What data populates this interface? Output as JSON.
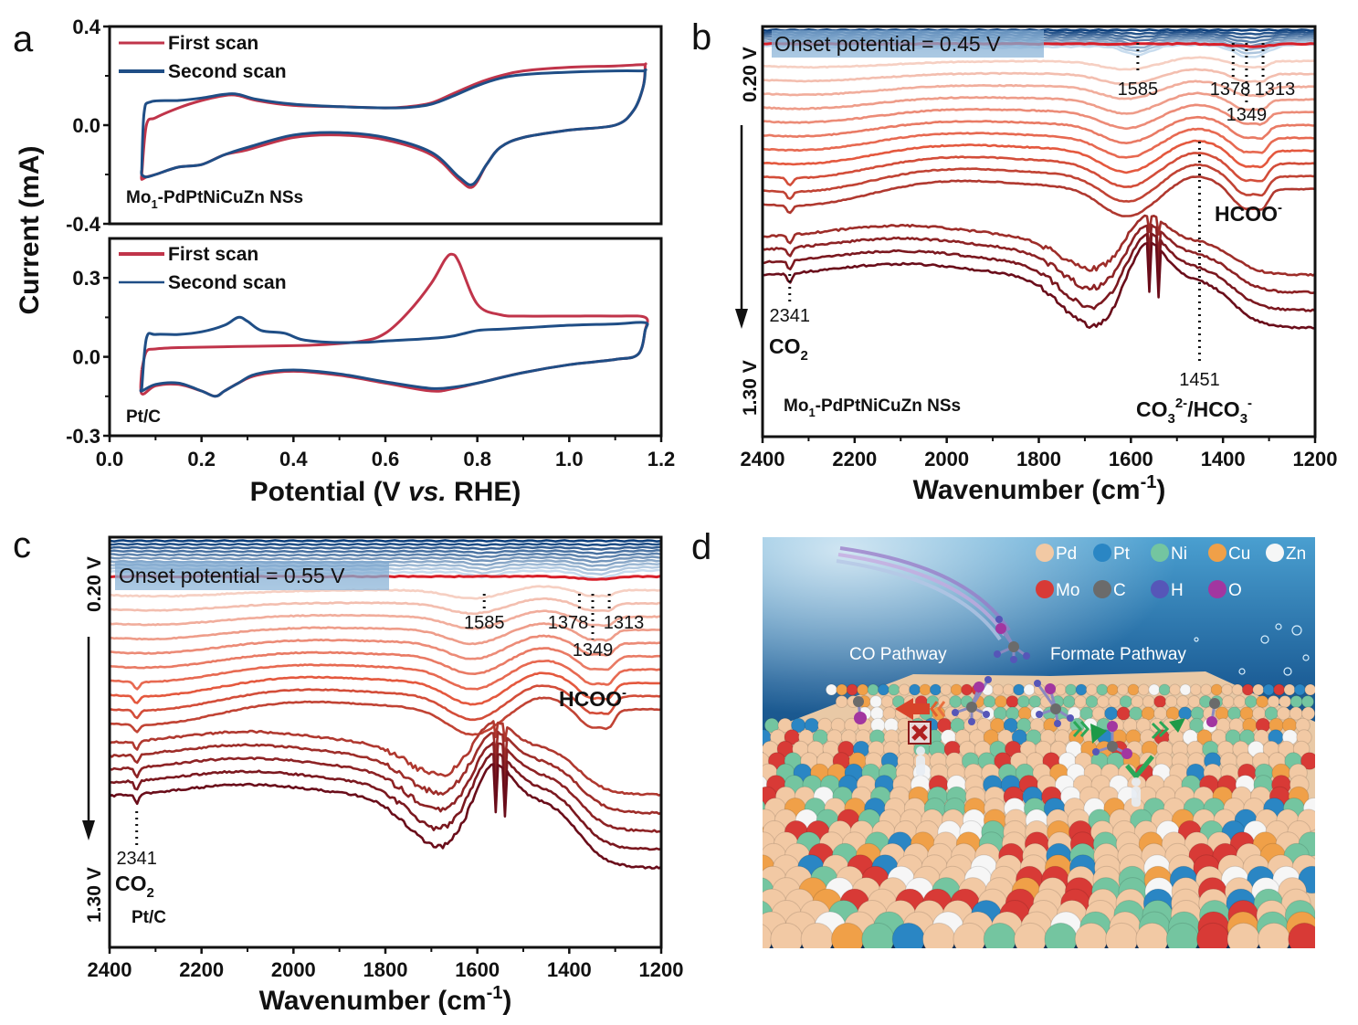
{
  "figure": {
    "panel_letters": [
      "a",
      "b",
      "c",
      "d"
    ]
  },
  "chart_data": [
    {
      "id": "a_top",
      "type": "line",
      "panel": "a",
      "sample_label": "Mo1-PdPtNiCuZn NSs",
      "sample_label_main": "Mo",
      "sample_label_sub": "1",
      "sample_label_rest": "-PdPtNiCuZn NSs",
      "xlabel": "Potential (V vs. RHE)",
      "ylabel": "Current (mA)",
      "xlim": [
        0.0,
        1.2
      ],
      "ylim": [
        -0.4,
        0.4
      ],
      "yticks": [
        "0.4",
        "0.0",
        "-0.4"
      ],
      "ytick_values": [
        0.4,
        0.0,
        -0.4
      ],
      "legend": [
        "First scan",
        "Second scan"
      ],
      "legend_position": "top-left",
      "series": [
        {
          "name": "First scan",
          "color": "#c0344a",
          "x": [
            0.07,
            0.08,
            0.1,
            0.15,
            0.2,
            0.25,
            0.28,
            0.32,
            0.4,
            0.5,
            0.6,
            0.65,
            0.7,
            0.75,
            0.8,
            0.85,
            0.9,
            1.0,
            1.1,
            1.16,
            1.165,
            1.16,
            1.14,
            1.1,
            1.0,
            0.9,
            0.85,
            0.82,
            0.79,
            0.76,
            0.7,
            0.6,
            0.5,
            0.4,
            0.3,
            0.25,
            0.2,
            0.15,
            0.1,
            0.08,
            0.07,
            0.07
          ],
          "y": [
            -0.2,
            0.0,
            0.03,
            0.07,
            0.1,
            0.12,
            0.12,
            0.1,
            0.08,
            0.075,
            0.07,
            0.075,
            0.09,
            0.13,
            0.17,
            0.2,
            0.22,
            0.235,
            0.24,
            0.245,
            0.24,
            0.15,
            0.06,
            0.0,
            -0.02,
            -0.05,
            -0.09,
            -0.16,
            -0.25,
            -0.22,
            -0.12,
            -0.06,
            -0.04,
            -0.05,
            -0.1,
            -0.12,
            -0.16,
            -0.17,
            -0.2,
            -0.21,
            -0.22,
            -0.2
          ]
        },
        {
          "name": "Second scan",
          "color": "#1f4e86",
          "x": [
            0.07,
            0.075,
            0.09,
            0.15,
            0.2,
            0.25,
            0.28,
            0.32,
            0.4,
            0.5,
            0.6,
            0.65,
            0.7,
            0.75,
            0.8,
            0.85,
            0.9,
            1.0,
            1.1,
            1.16,
            1.165,
            1.16,
            1.14,
            1.1,
            1.0,
            0.9,
            0.85,
            0.82,
            0.79,
            0.76,
            0.7,
            0.6,
            0.5,
            0.4,
            0.3,
            0.25,
            0.2,
            0.15,
            0.1,
            0.08,
            0.07,
            0.07
          ],
          "y": [
            -0.18,
            0.05,
            0.095,
            0.1,
            0.11,
            0.125,
            0.125,
            0.105,
            0.085,
            0.075,
            0.07,
            0.072,
            0.085,
            0.12,
            0.16,
            0.19,
            0.205,
            0.215,
            0.22,
            0.22,
            0.22,
            0.15,
            0.06,
            0.0,
            -0.02,
            -0.05,
            -0.09,
            -0.16,
            -0.24,
            -0.21,
            -0.11,
            -0.05,
            -0.03,
            -0.04,
            -0.09,
            -0.12,
            -0.16,
            -0.17,
            -0.2,
            -0.21,
            -0.2,
            -0.18
          ]
        }
      ]
    },
    {
      "id": "a_bottom",
      "type": "line",
      "panel": "a",
      "sample_label": "Pt/C",
      "xlabel": "Potential (V vs. RHE)",
      "xlabel_main": "Potential (V ",
      "xlabel_italic": "vs.",
      "xlabel_rest": " RHE)",
      "ylabel": "Current (mA)",
      "xlim": [
        0.0,
        1.2
      ],
      "ylim": [
        -0.3,
        0.45
      ],
      "xticks": [
        "0.0",
        "0.2",
        "0.4",
        "0.6",
        "0.8",
        "1.0",
        "1.2"
      ],
      "xtick_values": [
        0.0,
        0.2,
        0.4,
        0.6,
        0.8,
        1.0,
        1.2
      ],
      "yticks": [
        "0.3",
        "0.0",
        "-0.3"
      ],
      "ytick_values": [
        0.3,
        0.0,
        -0.3
      ],
      "legend": [
        "First scan",
        "Second scan"
      ],
      "legend_position": "top-left",
      "series": [
        {
          "name": "First scan",
          "color": "#c0344a",
          "x": [
            0.07,
            0.08,
            0.1,
            0.15,
            0.3,
            0.45,
            0.55,
            0.6,
            0.65,
            0.7,
            0.73,
            0.745,
            0.76,
            0.8,
            0.85,
            0.9,
            1.0,
            1.1,
            1.165,
            1.165,
            1.15,
            1.1,
            1.0,
            0.9,
            0.8,
            0.75,
            0.7,
            0.6,
            0.5,
            0.4,
            0.32,
            0.28,
            0.25,
            0.23,
            0.2,
            0.15,
            0.1,
            0.07,
            0.07
          ],
          "y": [
            -0.05,
            0.02,
            0.03,
            0.035,
            0.04,
            0.045,
            0.06,
            0.09,
            0.17,
            0.28,
            0.37,
            0.39,
            0.36,
            0.2,
            0.16,
            0.155,
            0.155,
            0.155,
            0.15,
            0.1,
            0.01,
            -0.01,
            -0.03,
            -0.06,
            -0.1,
            -0.12,
            -0.13,
            -0.1,
            -0.07,
            -0.055,
            -0.07,
            -0.1,
            -0.13,
            -0.15,
            -0.13,
            -0.105,
            -0.11,
            -0.14,
            -0.05
          ]
        },
        {
          "name": "Second scan",
          "color": "#1f4e86",
          "x": [
            0.07,
            0.08,
            0.1,
            0.15,
            0.2,
            0.25,
            0.28,
            0.3,
            0.33,
            0.38,
            0.42,
            0.48,
            0.55,
            0.6,
            0.7,
            0.75,
            0.8,
            0.85,
            0.9,
            1.0,
            1.1,
            1.165,
            1.165,
            1.15,
            1.1,
            1.0,
            0.9,
            0.8,
            0.75,
            0.7,
            0.6,
            0.5,
            0.4,
            0.32,
            0.28,
            0.25,
            0.23,
            0.2,
            0.15,
            0.1,
            0.07,
            0.07
          ],
          "y": [
            -0.12,
            0.07,
            0.085,
            0.085,
            0.095,
            0.12,
            0.15,
            0.135,
            0.1,
            0.09,
            0.065,
            0.055,
            0.055,
            0.06,
            0.07,
            0.08,
            0.1,
            0.105,
            0.11,
            0.12,
            0.125,
            0.13,
            0.1,
            0.01,
            -0.01,
            -0.03,
            -0.06,
            -0.1,
            -0.115,
            -0.12,
            -0.095,
            -0.065,
            -0.05,
            -0.065,
            -0.1,
            -0.13,
            -0.15,
            -0.13,
            -0.1,
            -0.105,
            -0.13,
            -0.12
          ]
        }
      ]
    },
    {
      "id": "b",
      "type": "line",
      "panel": "b",
      "title_annotation": "Onset potential = 0.45 V",
      "sample_label": "Mo1-PdPtNiCuZn NSs",
      "sample_label_main": "Mo",
      "sample_label_sub": "1",
      "sample_label_rest": "-PdPtNiCuZn NSs",
      "xlabel": "Wavenumber (cm-1)",
      "xlabel_main": "Wavenumber (cm",
      "xlabel_sup": "-1",
      "xlabel_close": ")",
      "xlim": [
        2400,
        1200
      ],
      "xticks": [
        "2400",
        "2200",
        "2000",
        "1800",
        "1600",
        "1400",
        "1200"
      ],
      "xtick_values": [
        2400,
        2200,
        2000,
        1800,
        1600,
        1400,
        1200
      ],
      "potential_top": "0.20 V",
      "potential_bottom": "1.30 V",
      "n_spectra_blue": 8,
      "n_spectra_red": 15,
      "peaks": [
        {
          "label": "1585",
          "wavenumber": 1585
        },
        {
          "label": "1378",
          "wavenumber": 1378
        },
        {
          "label": "1349",
          "wavenumber": 1349
        },
        {
          "label": "1313",
          "wavenumber": 1313
        },
        {
          "label": "1451",
          "wavenumber": 1451
        },
        {
          "label": "2341",
          "wavenumber": 2341
        }
      ],
      "species": [
        {
          "label": "HCOO",
          "sup": "-"
        },
        {
          "label": "CO",
          "sub": "2"
        },
        {
          "label": "CO",
          "sub": "3",
          "sup": "2-",
          "rest": "/HCO",
          "sub2": "3",
          "sup2": "-"
        }
      ]
    },
    {
      "id": "c",
      "type": "line",
      "panel": "c",
      "title_annotation": "Onset potential = 0.55 V",
      "sample_label": "Pt/C",
      "xlabel": "Wavenumber (cm-1)",
      "xlabel_main": "Wavenumber (cm",
      "xlabel_sup": "-1",
      "xlabel_close": ")",
      "xlim": [
        2400,
        1200
      ],
      "xticks": [
        "2400",
        "2200",
        "2000",
        "1800",
        "1600",
        "1400",
        "1200"
      ],
      "xtick_values": [
        2400,
        2200,
        2000,
        1800,
        1600,
        1400,
        1200
      ],
      "potential_top": "0.20 V",
      "potential_bottom": "1.30 V",
      "n_spectra_blue": 10,
      "n_spectra_red": 15,
      "peaks": [
        {
          "label": "1585",
          "wavenumber": 1585
        },
        {
          "label": "1378",
          "wavenumber": 1378
        },
        {
          "label": "1349",
          "wavenumber": 1349
        },
        {
          "label": "1313",
          "wavenumber": 1313
        },
        {
          "label": "2341",
          "wavenumber": 2341
        }
      ],
      "species": [
        {
          "label": "HCOO",
          "sup": "-"
        },
        {
          "label": "CO",
          "sub": "2"
        }
      ]
    }
  ],
  "panel_d": {
    "legend": [
      {
        "element": "Pd",
        "color": "#f2c9a4"
      },
      {
        "element": "Pt",
        "color": "#2a86c4"
      },
      {
        "element": "Ni",
        "color": "#74c5a0"
      },
      {
        "element": "Cu",
        "color": "#f0a048"
      },
      {
        "element": "Zn",
        "color": "#f6f6f6"
      },
      {
        "element": "Mo",
        "color": "#d83a36"
      },
      {
        "element": "C",
        "color": "#6b6b6b"
      },
      {
        "element": "H",
        "color": "#5656b8"
      },
      {
        "element": "O",
        "color": "#a236a0"
      }
    ],
    "labels": {
      "co_pathway": "CO Pathway",
      "formate_pathway": "Formate Pathway"
    },
    "colors": {
      "water_dark": "#0d3a66",
      "water_light": "#3f8cc0",
      "arrow_red": "#d8432a",
      "arrow_green": "#1e9a48"
    }
  }
}
